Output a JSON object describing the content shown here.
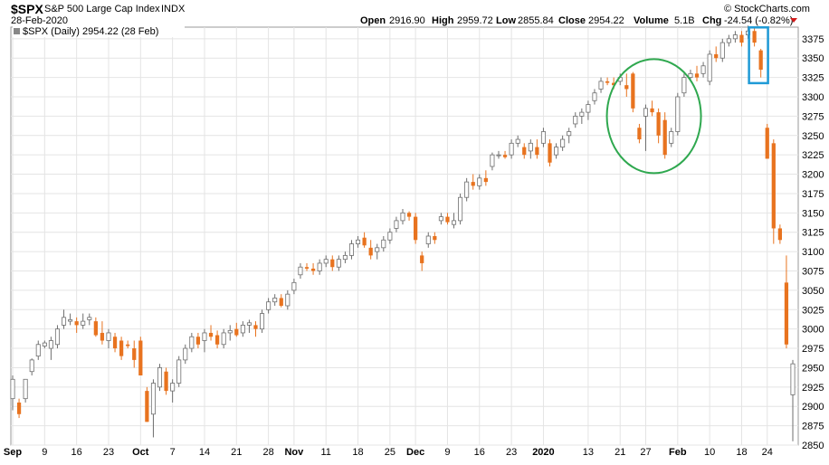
{
  "header": {
    "symbol": "$SPX",
    "name": "S&P 500 Large Cap Index",
    "exchange": "INDX",
    "watermark": "© StockCharts.com",
    "date": "28-Feb-2020",
    "open_label": "Open",
    "open": "2916.90",
    "high_label": "High",
    "high": "2959.72",
    "low_label": "Low",
    "low": "2855.84",
    "close_label": "Close",
    "close": "2954.22",
    "volume_label": "Volume",
    "volume": "5.1B",
    "chg_label": "Chg",
    "chg": "-24.54 (-0.82%)",
    "legend": "$SPX (Daily) 2954.22 (28 Feb)"
  },
  "colors": {
    "up": "#ffffff",
    "up_border": "#6e6e6e",
    "down": "#e8731f",
    "grid": "#e4e4e4",
    "circle": "#2fa84f",
    "box": "#1f9ad6",
    "chg": "#d11a1a"
  },
  "chart_data": {
    "type": "candlestick",
    "ylim": [
      2850,
      3390
    ],
    "yticks": [
      2850,
      2875,
      2900,
      2925,
      2950,
      2975,
      3000,
      3025,
      3050,
      3075,
      3100,
      3125,
      3150,
      3175,
      3200,
      3225,
      3250,
      3275,
      3300,
      3325,
      3350,
      3375
    ],
    "xtick_labels": [
      {
        "label": "Sep",
        "i": 0,
        "bold": true
      },
      {
        "label": "9",
        "i": 5
      },
      {
        "label": "16",
        "i": 10
      },
      {
        "label": "23",
        "i": 15
      },
      {
        "label": "Oct",
        "i": 20,
        "bold": true
      },
      {
        "label": "7",
        "i": 25
      },
      {
        "label": "14",
        "i": 30
      },
      {
        "label": "21",
        "i": 35
      },
      {
        "label": "28",
        "i": 40
      },
      {
        "label": "Nov",
        "i": 44,
        "bold": true
      },
      {
        "label": "11",
        "i": 49
      },
      {
        "label": "18",
        "i": 54
      },
      {
        "label": "25",
        "i": 59
      },
      {
        "label": "Dec",
        "i": 63,
        "bold": true
      },
      {
        "label": "9",
        "i": 68
      },
      {
        "label": "16",
        "i": 73
      },
      {
        "label": "23",
        "i": 78
      },
      {
        "label": "2020",
        "i": 83,
        "bold": true
      },
      {
        "label": "13",
        "i": 90
      },
      {
        "label": "21",
        "i": 95
      },
      {
        "label": "27",
        "i": 99
      },
      {
        "label": "Feb",
        "i": 104,
        "bold": true
      },
      {
        "label": "10",
        "i": 109
      },
      {
        "label": "18",
        "i": 114
      },
      {
        "label": "24",
        "i": 118
      }
    ],
    "ohlc": [
      [
        2910,
        2940,
        2895,
        2935
      ],
      [
        2905,
        2910,
        2885,
        2890
      ],
      [
        2910,
        2935,
        2905,
        2935
      ],
      [
        2945,
        2962,
        2940,
        2960
      ],
      [
        2965,
        2985,
        2960,
        2980
      ],
      [
        2978,
        2985,
        2975,
        2982
      ],
      [
        2975,
        2990,
        2960,
        2985
      ],
      [
        2980,
        3005,
        2975,
        3000
      ],
      [
        3005,
        3025,
        3000,
        3015
      ],
      [
        3010,
        3020,
        3005,
        3012
      ],
      [
        3010,
        3015,
        2995,
        3005
      ],
      [
        3005,
        3020,
        3000,
        3010
      ],
      [
        3012,
        3020,
        3005,
        3015
      ],
      [
        3010,
        3015,
        2990,
        2992
      ],
      [
        2995,
        3010,
        2980,
        2985
      ],
      [
        2985,
        3000,
        2975,
        2995
      ],
      [
        2990,
        2995,
        2970,
        2975
      ],
      [
        2985,
        2990,
        2960,
        2965
      ],
      [
        2980,
        2985,
        2975,
        2978
      ],
      [
        2975,
        2985,
        2950,
        2960
      ],
      [
        2985,
        2990,
        2940,
        2940
      ],
      [
        2920,
        2925,
        2880,
        2880
      ],
      [
        2890,
        2935,
        2860,
        2930
      ],
      [
        2925,
        2955,
        2920,
        2950
      ],
      [
        2945,
        2950,
        2915,
        2920
      ],
      [
        2920,
        2935,
        2905,
        2930
      ],
      [
        2930,
        2965,
        2925,
        2960
      ],
      [
        2960,
        2980,
        2955,
        2975
      ],
      [
        2975,
        2995,
        2970,
        2990
      ],
      [
        2990,
        2995,
        2975,
        2980
      ],
      [
        2985,
        3000,
        2970,
        2995
      ],
      [
        2995,
        3005,
        2985,
        2990
      ],
      [
        2992,
        2998,
        2975,
        2980
      ],
      [
        2980,
        3000,
        2975,
        2995
      ],
      [
        2995,
        3005,
        2985,
        2998
      ],
      [
        3000,
        3008,
        2990,
        2992
      ],
      [
        2995,
        3010,
        2990,
        3005
      ],
      [
        3005,
        3012,
        2995,
        3008
      ],
      [
        3005,
        3010,
        2990,
        3000
      ],
      [
        3000,
        3025,
        2995,
        3020
      ],
      [
        3025,
        3040,
        3020,
        3035
      ],
      [
        3035,
        3045,
        3030,
        3040
      ],
      [
        3040,
        3045,
        3028,
        3030
      ],
      [
        3030,
        3050,
        3025,
        3045
      ],
      [
        3050,
        3065,
        3045,
        3060
      ],
      [
        3070,
        3085,
        3065,
        3080
      ],
      [
        3080,
        3085,
        3075,
        3078
      ],
      [
        3078,
        3085,
        3070,
        3075
      ],
      [
        3075,
        3090,
        3070,
        3085
      ],
      [
        3085,
        3095,
        3080,
        3090
      ],
      [
        3090,
        3095,
        3075,
        3080
      ],
      [
        3080,
        3095,
        3075,
        3090
      ],
      [
        3090,
        3100,
        3085,
        3095
      ],
      [
        3095,
        3115,
        3090,
        3110
      ],
      [
        3110,
        3120,
        3105,
        3115
      ],
      [
        3118,
        3125,
        3105,
        3108
      ],
      [
        3105,
        3115,
        3090,
        3095
      ],
      [
        3100,
        3110,
        3090,
        3105
      ],
      [
        3105,
        3120,
        3100,
        3115
      ],
      [
        3115,
        3130,
        3110,
        3125
      ],
      [
        3130,
        3145,
        3125,
        3140
      ],
      [
        3140,
        3155,
        3135,
        3150
      ],
      [
        3150,
        3152,
        3140,
        3145
      ],
      [
        3145,
        3150,
        3110,
        3115
      ],
      [
        3095,
        3100,
        3075,
        3085
      ],
      [
        3110,
        3125,
        3105,
        3120
      ],
      [
        3120,
        3125,
        3110,
        3115
      ],
      [
        3140,
        3150,
        3135,
        3145
      ],
      [
        3145,
        3150,
        3135,
        3138
      ],
      [
        3135,
        3150,
        3130,
        3140
      ],
      [
        3140,
        3175,
        3135,
        3170
      ],
      [
        3170,
        3195,
        3165,
        3190
      ],
      [
        3190,
        3200,
        3180,
        3185
      ],
      [
        3185,
        3200,
        3180,
        3195
      ],
      [
        3195,
        3205,
        3185,
        3190
      ],
      [
        3210,
        3228,
        3205,
        3225
      ],
      [
        3225,
        3230,
        3220,
        3225
      ],
      [
        3225,
        3230,
        3220,
        3222
      ],
      [
        3225,
        3245,
        3220,
        3240
      ],
      [
        3240,
        3250,
        3235,
        3245
      ],
      [
        3235,
        3240,
        3220,
        3225
      ],
      [
        3230,
        3245,
        3220,
        3240
      ],
      [
        3235,
        3245,
        3220,
        3225
      ],
      [
        3240,
        3260,
        3235,
        3255
      ],
      [
        3240,
        3245,
        3210,
        3215
      ],
      [
        3225,
        3240,
        3220,
        3235
      ],
      [
        3235,
        3250,
        3230,
        3245
      ],
      [
        3250,
        3260,
        3240,
        3255
      ],
      [
        3265,
        3280,
        3260,
        3275
      ],
      [
        3275,
        3285,
        3265,
        3280
      ],
      [
        3280,
        3295,
        3270,
        3290
      ],
      [
        3295,
        3310,
        3290,
        3305
      ],
      [
        3310,
        3325,
        3305,
        3320
      ],
      [
        3320,
        3325,
        3315,
        3318
      ],
      [
        3318,
        3325,
        3310,
        3315
      ],
      [
        3320,
        3330,
        3315,
        3325
      ],
      [
        3315,
        3330,
        3300,
        3310
      ],
      [
        3330,
        3332,
        3280,
        3285
      ],
      [
        3260,
        3265,
        3240,
        3245
      ],
      [
        3275,
        3290,
        3230,
        3285
      ],
      [
        3285,
        3295,
        3275,
        3280
      ],
      [
        3280,
        3285,
        3240,
        3250
      ],
      [
        3270,
        3280,
        3220,
        3225
      ],
      [
        3240,
        3260,
        3235,
        3255
      ],
      [
        3255,
        3305,
        3250,
        3300
      ],
      [
        3305,
        3330,
        3300,
        3325
      ],
      [
        3325,
        3335,
        3320,
        3330
      ],
      [
        3330,
        3340,
        3320,
        3325
      ],
      [
        3330,
        3345,
        3325,
        3340
      ],
      [
        3320,
        3360,
        3315,
        3355
      ],
      [
        3355,
        3365,
        3345,
        3350
      ],
      [
        3350,
        3375,
        3345,
        3370
      ],
      [
        3370,
        3380,
        3365,
        3375
      ],
      [
        3375,
        3385,
        3370,
        3380
      ],
      [
        3380,
        3385,
        3365,
        3370
      ],
      [
        3380,
        3392,
        3375,
        3385
      ],
      [
        3385,
        3390,
        3365,
        3370
      ],
      [
        3360,
        3362,
        3325,
        3335
      ],
      [
        3260,
        3265,
        3220,
        3220
      ],
      [
        3240,
        3245,
        3110,
        3130
      ],
      [
        3130,
        3135,
        3110,
        3115
      ],
      [
        3060,
        3095,
        2975,
        2980
      ],
      [
        2915,
        2960,
        2855,
        2955
      ]
    ]
  }
}
